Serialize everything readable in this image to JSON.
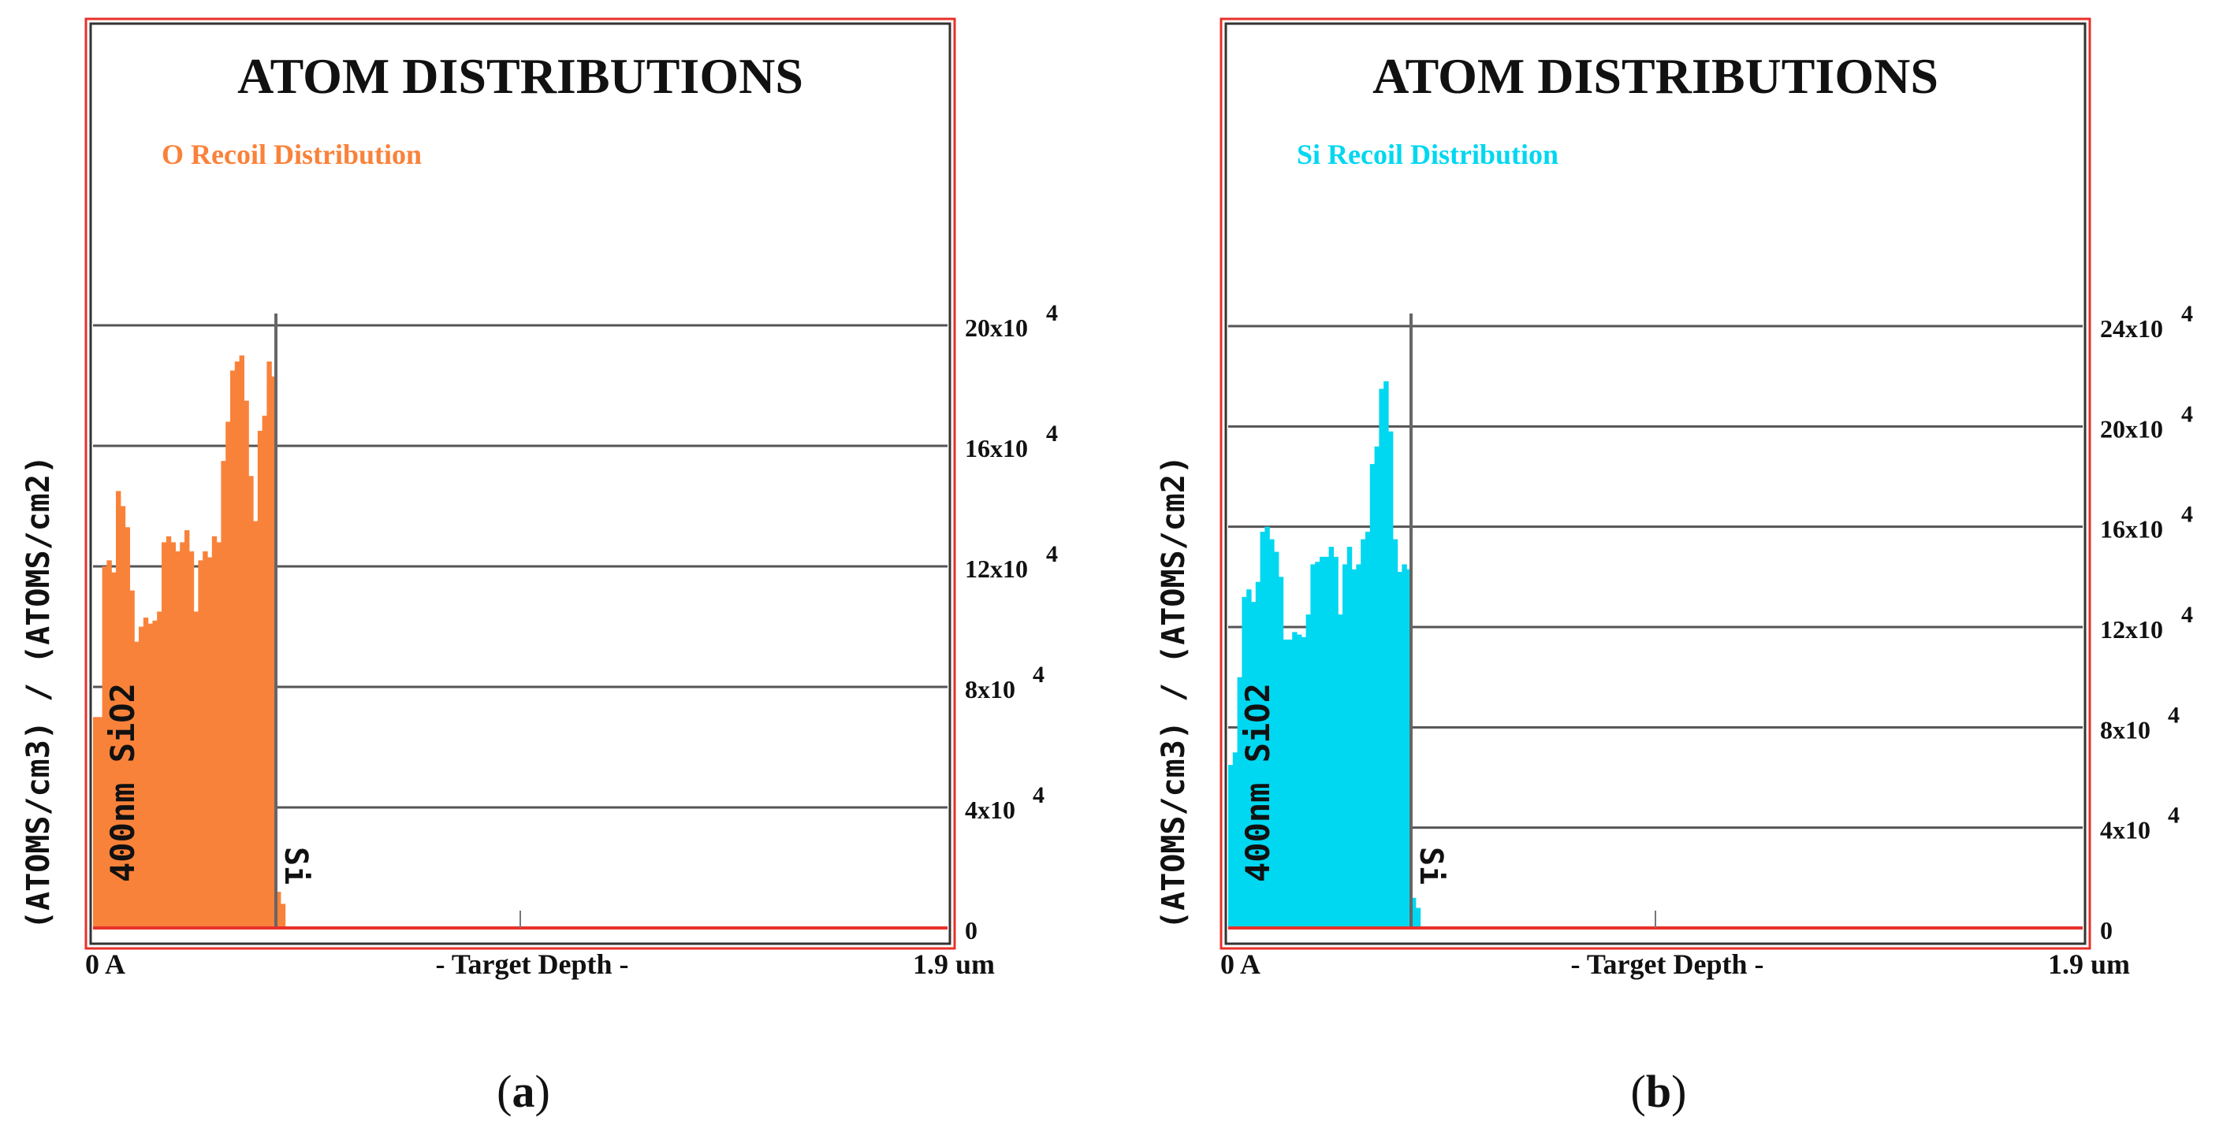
{
  "figure": {
    "panels": [
      {
        "id": "a",
        "caption": "(a)",
        "title": "ATOM DISTRIBUTIONS",
        "subtitle": "O Recoil Distribution",
        "ylabel": "(ATOMS/cm3) / (ATOMS/cm2)",
        "xlabel": "- Target Depth -",
        "xtick_left": "0 A",
        "xtick_right": "1.9 um",
        "layer_label_1": "400nm SiO2",
        "layer_label_2": "Si",
        "ytick_labels": [
          "0",
          "4x10",
          "8x10",
          "12x10",
          "16x10",
          "20x10"
        ],
        "ytick_exponent": "4"
      },
      {
        "id": "b",
        "caption": "(b)",
        "title": "ATOM DISTRIBUTIONS",
        "subtitle": "Si Recoil Distribution",
        "ylabel": "(ATOMS/cm3) / (ATOMS/cm2)",
        "xlabel": "- Target Depth -",
        "xtick_left": "0 A",
        "xtick_right": "1.9 um",
        "layer_label_1": "400nm SiO2",
        "layer_label_2": "Si",
        "ytick_labels": [
          "0",
          "4x10",
          "8x10",
          "12x10",
          "16x10",
          "20x10",
          "24x10"
        ],
        "ytick_exponent": "4"
      }
    ]
  },
  "chart_data": [
    {
      "type": "bar",
      "title": "ATOM DISTRIBUTIONS",
      "subtitle": "O Recoil Distribution",
      "xlabel": "- Target Depth -",
      "ylabel": "(ATOMS/cm3) / (ATOMS/cm2)",
      "xlim_um": [
        0,
        1.9
      ],
      "interface_um": 0.4,
      "ylim": [
        0,
        200000
      ],
      "yticks": [
        0,
        40000,
        80000,
        120000,
        160000,
        200000
      ],
      "grid": true,
      "color": "#f9823a",
      "bin_width_um": 0.01,
      "x_start_um": 0,
      "values": [
        70000,
        70000,
        120000,
        122000,
        118000,
        145000,
        140000,
        133000,
        112000,
        95000,
        100000,
        103000,
        101000,
        102000,
        105000,
        128000,
        130000,
        128000,
        125000,
        128000,
        132000,
        125000,
        105000,
        122000,
        125000,
        123000,
        130000,
        128000,
        155000,
        168000,
        185000,
        188000,
        190000,
        175000,
        150000,
        135000,
        165000,
        170000,
        188000,
        183000,
        12000,
        8000,
        0
      ]
    },
    {
      "type": "bar",
      "title": "ATOM DISTRIBUTIONS",
      "subtitle": "Si Recoil Distribution",
      "xlabel": "- Target Depth -",
      "ylabel": "(ATOMS/cm3) / (ATOMS/cm2)",
      "xlim_um": [
        0,
        1.9
      ],
      "interface_um": 0.4,
      "ylim": [
        0,
        240000
      ],
      "yticks": [
        0,
        40000,
        80000,
        120000,
        160000,
        200000,
        240000
      ],
      "grid": true,
      "color": "#00d7f0",
      "bin_width_um": 0.01,
      "x_start_um": 0,
      "values": [
        65000,
        70000,
        100000,
        132000,
        135000,
        130000,
        138000,
        158000,
        160000,
        155000,
        150000,
        140000,
        115000,
        115000,
        118000,
        117000,
        116000,
        125000,
        145000,
        146000,
        148000,
        148000,
        152000,
        148000,
        125000,
        145000,
        152000,
        143000,
        145000,
        155000,
        158000,
        185000,
        192000,
        215000,
        218000,
        198000,
        155000,
        142000,
        145000,
        143000,
        12000,
        8000,
        0
      ]
    }
  ]
}
